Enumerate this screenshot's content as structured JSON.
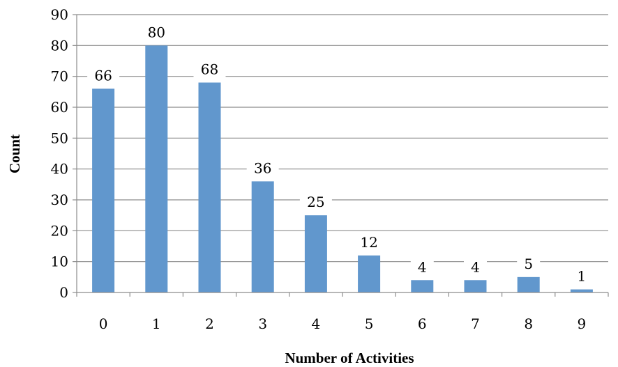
{
  "chart_data": {
    "type": "bar",
    "title": "",
    "xlabel": "Number of Activities",
    "ylabel": "Count",
    "categories": [
      "0",
      "1",
      "2",
      "3",
      "4",
      "5",
      "6",
      "7",
      "8",
      "9"
    ],
    "values": [
      66,
      80,
      68,
      36,
      25,
      12,
      4,
      4,
      5,
      1
    ],
    "data_labels": [
      "66",
      "80",
      "68",
      "36",
      "25",
      "12",
      "4",
      "4",
      "5",
      "1"
    ],
    "ylim": [
      0,
      90
    ],
    "yticks": [
      "0",
      "10",
      "20",
      "30",
      "40",
      "50",
      "60",
      "70",
      "80",
      "90"
    ],
    "grid": "horizontal",
    "legend": "none",
    "bar_color": "#6197cd"
  }
}
